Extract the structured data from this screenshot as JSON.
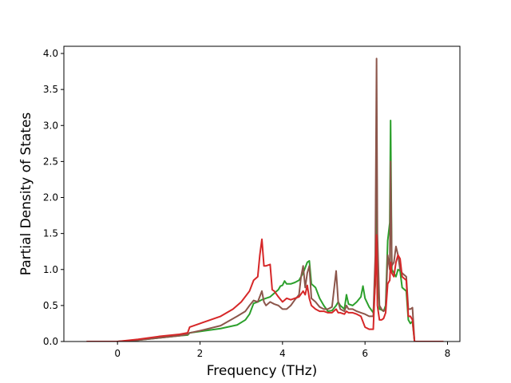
{
  "chart_data": {
    "type": "line",
    "title": "",
    "xlabel": "Frequency (THz)",
    "ylabel": "Partial Density of States",
    "xlim": [
      -1.3,
      8.3
    ],
    "ylim": [
      0.0,
      4.1
    ],
    "xticks": [
      0,
      2,
      4,
      6,
      8
    ],
    "yticks": [
      0.0,
      0.5,
      1.0,
      1.5,
      2.0,
      2.5,
      3.0,
      3.5,
      4.0
    ],
    "xtick_labels": [
      "0",
      "2",
      "4",
      "6",
      "8"
    ],
    "ytick_labels": [
      "0.0",
      "0.5",
      "1.0",
      "1.5",
      "2.0",
      "2.5",
      "3.0",
      "3.5",
      "4.0"
    ],
    "grid": false,
    "legend": "none",
    "series": [
      {
        "color": "#2ca02c",
        "points": [
          [
            -0.75,
            0.0
          ],
          [
            0,
            0.0
          ],
          [
            0.5,
            0.02
          ],
          [
            1.0,
            0.05
          ],
          [
            1.5,
            0.08
          ],
          [
            1.7,
            0.09
          ],
          [
            1.75,
            0.12
          ],
          [
            2.0,
            0.14
          ],
          [
            2.5,
            0.18
          ],
          [
            2.9,
            0.23
          ],
          [
            3.1,
            0.3
          ],
          [
            3.2,
            0.38
          ],
          [
            3.3,
            0.53
          ],
          [
            3.4,
            0.55
          ],
          [
            3.5,
            0.58
          ],
          [
            3.6,
            0.6
          ],
          [
            3.7,
            0.62
          ],
          [
            3.8,
            0.67
          ],
          [
            3.9,
            0.72
          ],
          [
            3.95,
            0.77
          ],
          [
            4.0,
            0.78
          ],
          [
            4.05,
            0.84
          ],
          [
            4.1,
            0.8
          ],
          [
            4.2,
            0.8
          ],
          [
            4.3,
            0.82
          ],
          [
            4.4,
            0.85
          ],
          [
            4.5,
            0.95
          ],
          [
            4.6,
            1.1
          ],
          [
            4.65,
            1.12
          ],
          [
            4.7,
            0.8
          ],
          [
            4.8,
            0.75
          ],
          [
            4.9,
            0.6
          ],
          [
            5.0,
            0.5
          ],
          [
            5.1,
            0.42
          ],
          [
            5.2,
            0.43
          ],
          [
            5.3,
            0.5
          ],
          [
            5.35,
            0.55
          ],
          [
            5.4,
            0.5
          ],
          [
            5.5,
            0.45
          ],
          [
            5.55,
            0.65
          ],
          [
            5.6,
            0.52
          ],
          [
            5.7,
            0.5
          ],
          [
            5.8,
            0.55
          ],
          [
            5.9,
            0.62
          ],
          [
            5.95,
            0.77
          ],
          [
            6.0,
            0.6
          ],
          [
            6.1,
            0.48
          ],
          [
            6.2,
            0.4
          ],
          [
            6.25,
            0.8
          ],
          [
            6.28,
            3.1
          ],
          [
            6.3,
            1.0
          ],
          [
            6.35,
            0.45
          ],
          [
            6.4,
            0.44
          ],
          [
            6.45,
            0.42
          ],
          [
            6.5,
            0.5
          ],
          [
            6.55,
            1.4
          ],
          [
            6.6,
            1.65
          ],
          [
            6.62,
            3.07
          ],
          [
            6.65,
            1.0
          ],
          [
            6.7,
            0.95
          ],
          [
            6.75,
            0.9
          ],
          [
            6.8,
            1.0
          ],
          [
            6.85,
            0.98
          ],
          [
            6.9,
            0.75
          ],
          [
            7.0,
            0.7
          ],
          [
            7.05,
            0.3
          ],
          [
            7.1,
            0.25
          ],
          [
            7.15,
            0.28
          ],
          [
            7.2,
            0.0
          ],
          [
            7.9,
            0.0
          ]
        ]
      },
      {
        "color": "#8c564b",
        "points": [
          [
            -0.75,
            0.0
          ],
          [
            0,
            0.0
          ],
          [
            0.5,
            0.02
          ],
          [
            1.0,
            0.05
          ],
          [
            1.5,
            0.08
          ],
          [
            1.7,
            0.1
          ],
          [
            1.75,
            0.12
          ],
          [
            2.0,
            0.15
          ],
          [
            2.5,
            0.22
          ],
          [
            2.9,
            0.35
          ],
          [
            3.1,
            0.42
          ],
          [
            3.2,
            0.5
          ],
          [
            3.3,
            0.57
          ],
          [
            3.4,
            0.55
          ],
          [
            3.5,
            0.7
          ],
          [
            3.55,
            0.55
          ],
          [
            3.6,
            0.5
          ],
          [
            3.7,
            0.55
          ],
          [
            3.8,
            0.52
          ],
          [
            3.9,
            0.5
          ],
          [
            4.0,
            0.45
          ],
          [
            4.1,
            0.45
          ],
          [
            4.2,
            0.5
          ],
          [
            4.3,
            0.58
          ],
          [
            4.4,
            0.65
          ],
          [
            4.45,
            0.9
          ],
          [
            4.5,
            1.05
          ],
          [
            4.55,
            0.75
          ],
          [
            4.6,
            0.95
          ],
          [
            4.65,
            1.05
          ],
          [
            4.7,
            0.6
          ],
          [
            4.8,
            0.55
          ],
          [
            4.9,
            0.48
          ],
          [
            5.0,
            0.45
          ],
          [
            5.1,
            0.45
          ],
          [
            5.2,
            0.48
          ],
          [
            5.3,
            0.98
          ],
          [
            5.35,
            0.55
          ],
          [
            5.4,
            0.45
          ],
          [
            5.5,
            0.42
          ],
          [
            5.55,
            0.5
          ],
          [
            5.6,
            0.45
          ],
          [
            5.7,
            0.45
          ],
          [
            5.8,
            0.42
          ],
          [
            5.9,
            0.4
          ],
          [
            6.0,
            0.38
          ],
          [
            6.1,
            0.35
          ],
          [
            6.2,
            0.35
          ],
          [
            6.25,
            1.2
          ],
          [
            6.28,
            3.93
          ],
          [
            6.3,
            1.5
          ],
          [
            6.35,
            0.5
          ],
          [
            6.4,
            0.45
          ],
          [
            6.45,
            0.42
          ],
          [
            6.5,
            0.45
          ],
          [
            6.55,
            1.2
          ],
          [
            6.6,
            1.0
          ],
          [
            6.62,
            2.5
          ],
          [
            6.65,
            1.05
          ],
          [
            6.7,
            1.1
          ],
          [
            6.75,
            1.32
          ],
          [
            6.8,
            1.2
          ],
          [
            6.85,
            1.0
          ],
          [
            6.9,
            0.95
          ],
          [
            7.0,
            0.9
          ],
          [
            7.05,
            0.45
          ],
          [
            7.1,
            0.45
          ],
          [
            7.15,
            0.47
          ],
          [
            7.2,
            0.0
          ],
          [
            7.9,
            0.0
          ]
        ]
      },
      {
        "color": "#d62728",
        "points": [
          [
            -0.75,
            0.0
          ],
          [
            0,
            0.0
          ],
          [
            0.5,
            0.03
          ],
          [
            1.0,
            0.07
          ],
          [
            1.5,
            0.1
          ],
          [
            1.7,
            0.12
          ],
          [
            1.75,
            0.2
          ],
          [
            2.0,
            0.25
          ],
          [
            2.5,
            0.35
          ],
          [
            2.8,
            0.45
          ],
          [
            3.0,
            0.55
          ],
          [
            3.2,
            0.7
          ],
          [
            3.3,
            0.85
          ],
          [
            3.4,
            0.9
          ],
          [
            3.45,
            1.2
          ],
          [
            3.5,
            1.42
          ],
          [
            3.55,
            1.05
          ],
          [
            3.6,
            1.05
          ],
          [
            3.7,
            1.07
          ],
          [
            3.75,
            0.72
          ],
          [
            3.8,
            0.7
          ],
          [
            3.9,
            0.62
          ],
          [
            4.0,
            0.55
          ],
          [
            4.1,
            0.6
          ],
          [
            4.2,
            0.58
          ],
          [
            4.3,
            0.6
          ],
          [
            4.4,
            0.62
          ],
          [
            4.5,
            0.7
          ],
          [
            4.55,
            0.65
          ],
          [
            4.6,
            0.78
          ],
          [
            4.65,
            0.6
          ],
          [
            4.7,
            0.5
          ],
          [
            4.8,
            0.45
          ],
          [
            4.9,
            0.42
          ],
          [
            5.0,
            0.42
          ],
          [
            5.1,
            0.4
          ],
          [
            5.2,
            0.4
          ],
          [
            5.3,
            0.45
          ],
          [
            5.35,
            0.4
          ],
          [
            5.4,
            0.4
          ],
          [
            5.5,
            0.38
          ],
          [
            5.55,
            0.42
          ],
          [
            5.6,
            0.4
          ],
          [
            5.7,
            0.4
          ],
          [
            5.8,
            0.38
          ],
          [
            5.9,
            0.35
          ],
          [
            6.0,
            0.2
          ],
          [
            6.1,
            0.17
          ],
          [
            6.2,
            0.17
          ],
          [
            6.25,
            0.9
          ],
          [
            6.28,
            1.48
          ],
          [
            6.3,
            0.5
          ],
          [
            6.35,
            0.3
          ],
          [
            6.4,
            0.3
          ],
          [
            6.45,
            0.32
          ],
          [
            6.5,
            0.4
          ],
          [
            6.55,
            0.8
          ],
          [
            6.6,
            0.85
          ],
          [
            6.62,
            1.1
          ],
          [
            6.65,
            0.95
          ],
          [
            6.7,
            0.9
          ],
          [
            6.75,
            1.1
          ],
          [
            6.8,
            1.2
          ],
          [
            6.85,
            1.15
          ],
          [
            6.9,
            0.9
          ],
          [
            7.0,
            0.85
          ],
          [
            7.05,
            0.35
          ],
          [
            7.1,
            0.35
          ],
          [
            7.15,
            0.3
          ],
          [
            7.2,
            0.0
          ],
          [
            7.9,
            0.0
          ]
        ]
      }
    ]
  }
}
